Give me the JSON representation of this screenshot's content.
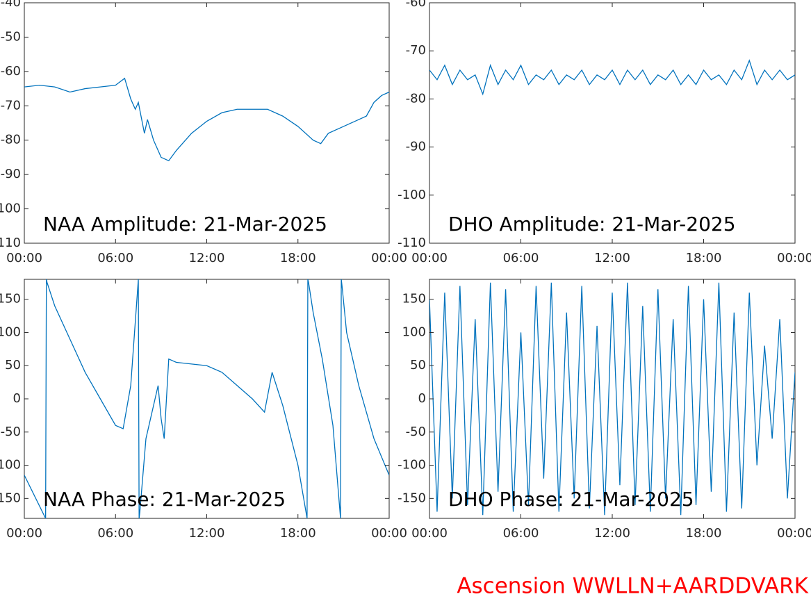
{
  "chart_data": [
    {
      "type": "line",
      "title": "NAA Amplitude: 21-Mar-2025",
      "color": "#0072bd",
      "x": [
        0,
        1,
        2,
        3,
        4,
        5,
        6,
        6.6,
        7,
        7.3,
        7.5,
        7.9,
        8.1,
        8.5,
        9,
        9.5,
        10,
        11,
        12,
        13,
        14,
        15,
        16,
        17,
        18,
        19,
        19.5,
        20,
        21,
        22,
        22.5,
        23,
        23.5,
        24
      ],
      "values": [
        -64.5,
        -64,
        -64.5,
        -66,
        -65,
        -64.5,
        -64,
        -62,
        -68,
        -71,
        -69,
        -78,
        -74,
        -80,
        -85,
        -86,
        -83,
        -78,
        -74.5,
        -72,
        -71,
        -71,
        -71,
        -73,
        -76,
        -80,
        -81,
        -78,
        -76,
        -74,
        -73,
        -69,
        -67,
        -66
      ],
      "xlim": [
        0,
        24
      ],
      "xticks": [
        {
          "value": 0,
          "label": "00:00"
        },
        {
          "value": 6,
          "label": "06:00"
        },
        {
          "value": 12,
          "label": "12:00"
        },
        {
          "value": 18,
          "label": "18:00"
        },
        {
          "value": 24,
          "label": "00:00"
        }
      ],
      "ylim": [
        -110,
        -40
      ],
      "yticks": [
        -40,
        -50,
        -60,
        -70,
        -80,
        -90,
        -100,
        -110
      ]
    },
    {
      "type": "line",
      "title": "DHO Amplitude: 21-Mar-2025",
      "color": "#0072bd",
      "x": [
        0,
        0.5,
        1,
        1.5,
        2,
        2.5,
        3,
        3.5,
        4,
        4.5,
        5,
        5.5,
        6,
        6.5,
        7,
        7.5,
        8,
        8.5,
        9,
        9.5,
        10,
        10.5,
        11,
        11.5,
        12,
        12.5,
        13,
        13.5,
        14,
        14.5,
        15,
        15.5,
        16,
        16.5,
        17,
        17.5,
        18,
        18.5,
        19,
        19.5,
        20,
        20.5,
        21,
        21.5,
        22,
        22.5,
        23,
        23.5,
        24
      ],
      "values": [
        -74,
        -76,
        -73,
        -77,
        -74,
        -76,
        -75,
        -79,
        -73,
        -77,
        -74,
        -76,
        -73,
        -77,
        -75,
        -76,
        -74,
        -77,
        -75,
        -76,
        -74,
        -77,
        -75,
        -76,
        -74,
        -77,
        -74,
        -76,
        -74,
        -77,
        -75,
        -76,
        -74,
        -77,
        -75,
        -77,
        -74,
        -76,
        -75,
        -77,
        -74,
        -76,
        -72,
        -77,
        -74,
        -76,
        -74,
        -76,
        -75
      ],
      "xlim": [
        0,
        24
      ],
      "xticks": [
        {
          "value": 0,
          "label": "00:00"
        },
        {
          "value": 6,
          "label": "06:00"
        },
        {
          "value": 12,
          "label": "12:00"
        },
        {
          "value": 18,
          "label": "18:00"
        },
        {
          "value": 24,
          "label": "00:00"
        }
      ],
      "ylim": [
        -110,
        -60
      ],
      "yticks": [
        -60,
        -70,
        -80,
        -90,
        -100,
        -110
      ]
    },
    {
      "type": "line",
      "title": "NAA Phase: 21-Mar-2025",
      "color": "#0072bd",
      "x": [
        0,
        1.4,
        1.45,
        1.5,
        2,
        3,
        4,
        5,
        6,
        6.5,
        7,
        7.5,
        7.55,
        7.6,
        8,
        8.8,
        9,
        9.2,
        9.5,
        10,
        12,
        13,
        14,
        15,
        15.8,
        16.3,
        17,
        18,
        18.6,
        18.65,
        18.7,
        19,
        19.6,
        20.3,
        20.8,
        20.85,
        20.9,
        21.2,
        22,
        23,
        24
      ],
      "values": [
        -115,
        -180,
        180,
        175,
        140,
        90,
        40,
        0,
        -40,
        -45,
        20,
        180,
        -180,
        -170,
        -60,
        20,
        -30,
        -60,
        60,
        55,
        50,
        40,
        20,
        0,
        -20,
        40,
        -10,
        -100,
        -180,
        180,
        175,
        130,
        60,
        -40,
        -180,
        180,
        170,
        100,
        20,
        -60,
        -115
      ],
      "xlim": [
        0,
        24
      ],
      "xticks": [
        {
          "value": 0,
          "label": "00:00"
        },
        {
          "value": 6,
          "label": "06:00"
        },
        {
          "value": 12,
          "label": "12:00"
        },
        {
          "value": 18,
          "label": "18:00"
        },
        {
          "value": 24,
          "label": "00:00"
        }
      ],
      "ylim": [
        -180,
        180
      ],
      "yticks": [
        -150,
        -100,
        -50,
        0,
        50,
        100,
        150
      ]
    },
    {
      "type": "line",
      "title": "DHO Phase: 21-Mar-2025",
      "color": "#0072bd",
      "x": [
        0,
        0.5,
        1,
        1.5,
        2,
        2.5,
        3,
        3.5,
        4,
        4.5,
        5,
        5.5,
        6,
        6.5,
        7,
        7.5,
        8,
        8.5,
        9,
        9.5,
        10,
        10.5,
        11,
        11.5,
        12,
        12.5,
        13,
        13.5,
        14,
        14.5,
        15,
        15.5,
        16,
        16.5,
        17,
        17.5,
        18,
        18.5,
        19,
        19.5,
        20,
        20.5,
        21,
        21.5,
        22,
        22.5,
        23,
        23.5,
        24
      ],
      "values": [
        150,
        -170,
        160,
        -150,
        170,
        -160,
        120,
        -175,
        175,
        -140,
        165,
        -170,
        100,
        -160,
        170,
        -120,
        175,
        -170,
        130,
        -150,
        170,
        -165,
        110,
        -175,
        160,
        -130,
        175,
        -160,
        140,
        -170,
        165,
        -150,
        120,
        -175,
        170,
        -160,
        150,
        -140,
        175,
        -170,
        130,
        -165,
        160,
        -100,
        80,
        -60,
        120,
        -150,
        40
      ],
      "xlim": [
        0,
        24
      ],
      "xticks": [
        {
          "value": 0,
          "label": "00:00"
        },
        {
          "value": 6,
          "label": "06:00"
        },
        {
          "value": 12,
          "label": "12:00"
        },
        {
          "value": 18,
          "label": "18:00"
        },
        {
          "value": 24,
          "label": "00:00"
        }
      ],
      "ylim": [
        -180,
        180
      ],
      "yticks": [
        -150,
        -100,
        -50,
        0,
        50,
        100,
        150
      ]
    }
  ],
  "caption": "Ascension WWLLN+AARDDVARK"
}
